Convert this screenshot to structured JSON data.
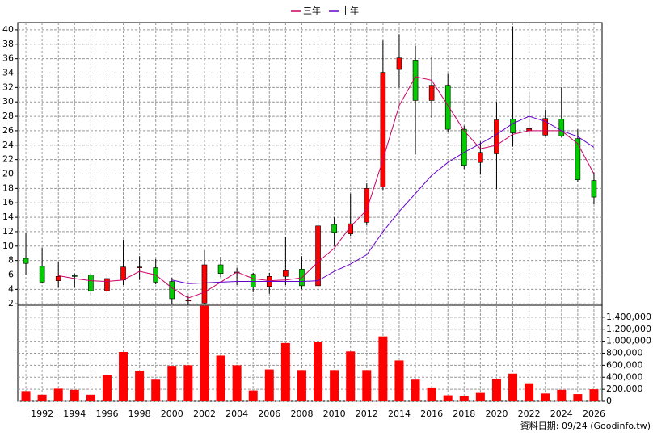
{
  "chart_data": [
    {
      "type": "candlestick",
      "categories": [
        null,
        "1992",
        null,
        "1994",
        null,
        "1996",
        null,
        "1998",
        null,
        "2000",
        null,
        "2002",
        null,
        "2004",
        null,
        "2006",
        null,
        "2008",
        null,
        "2010",
        null,
        "2012",
        null,
        "2014",
        null,
        "2016",
        null,
        "2018",
        null,
        "2020",
        null,
        "2022",
        null,
        "2024",
        null,
        "2026"
      ],
      "open": [
        8.3,
        7.2,
        5.2,
        5.9,
        6.0,
        3.8,
        5.3,
        7.0,
        7.0,
        5.1,
        2.4,
        2.1,
        7.4,
        6.4,
        6.1,
        4.4,
        5.8,
        6.8,
        4.5,
        13.0,
        11.7,
        13.3,
        18.2,
        34.5,
        35.8,
        30.2,
        32.3,
        26.2,
        21.6,
        22.8,
        27.6,
        26.0,
        25.4,
        27.6,
        24.9,
        19.1
      ],
      "high": [
        11.9,
        9.8,
        7.8,
        6.2,
        6.3,
        6.0,
        10.9,
        8.6,
        8.2,
        5.6,
        3.1,
        9.4,
        8.5,
        7.0,
        6.3,
        6.3,
        11.3,
        8.6,
        15.4,
        14.0,
        17.3,
        18.7,
        38.5,
        39.4,
        37.8,
        36.2,
        33.9,
        26.7,
        24.5,
        30.0,
        40.5,
        31.4,
        28.9,
        32.0,
        26.2,
        20.2
      ],
      "low": [
        6.0,
        4.8,
        4.2,
        4.2,
        3.2,
        3.4,
        4.6,
        5.3,
        4.7,
        1.9,
        1.8,
        2.0,
        5.7,
        4.6,
        3.6,
        3.4,
        4.6,
        4.0,
        3.9,
        10.0,
        11.4,
        12.9,
        17.8,
        32.0,
        22.7,
        27.8,
        25.8,
        20.7,
        19.9,
        17.9,
        23.8,
        25.3,
        25.2,
        25.1,
        18.9,
        15.8
      ],
      "close": [
        7.6,
        5.0,
        5.8,
        5.8,
        3.8,
        5.5,
        7.1,
        7.1,
        5.0,
        2.7,
        2.5,
        7.4,
        6.2,
        6.3,
        4.3,
        5.8,
        6.6,
        4.5,
        12.8,
        11.9,
        13.1,
        18.0,
        34.1,
        36.1,
        30.2,
        32.3,
        26.2,
        21.2,
        23.0,
        27.5,
        25.7,
        26.3,
        27.7,
        25.3,
        19.2,
        16.8
      ],
      "up_color": "#ff0000",
      "down_color": "#00cc00",
      "series": [
        {
          "name": "三年",
          "color": "#cc0066",
          "values": [
            null,
            null,
            5.9,
            5.5,
            5.2,
            5.1,
            5.3,
            6.5,
            6.0,
            4.2,
            2.8,
            3.6,
            5.0,
            6.4,
            5.5,
            5.2,
            5.3,
            5.6,
            7.8,
            9.7,
            12.7,
            15.0,
            22.0,
            29.5,
            33.5,
            33.0,
            29.5,
            26.0,
            23.5,
            24.0,
            25.5,
            26.0,
            26.0,
            26.0,
            24.2,
            20.0
          ]
        },
        {
          "name": "十年",
          "color": "#6600cc",
          "values": [
            null,
            null,
            null,
            null,
            null,
            null,
            null,
            null,
            null,
            5.3,
            4.8,
            4.9,
            5.0,
            5.1,
            5.1,
            5.1,
            5.1,
            5.1,
            5.2,
            6.5,
            7.5,
            8.8,
            12.0,
            14.8,
            17.3,
            19.8,
            21.6,
            23.0,
            24.2,
            25.5,
            27.0,
            28.0,
            27.3,
            26.0,
            25.2,
            23.7
          ]
        }
      ],
      "ylim": [
        1.8,
        41
      ],
      "yticks": [
        2,
        4,
        6,
        8,
        10,
        12,
        14,
        16,
        18,
        20,
        22,
        24,
        26,
        28,
        30,
        32,
        34,
        36,
        38,
        40
      ],
      "grid": true
    },
    {
      "type": "bar",
      "values": [
        170000,
        110000,
        210000,
        190000,
        110000,
        440000,
        820000,
        510000,
        360000,
        590000,
        600000,
        1590000,
        760000,
        600000,
        180000,
        530000,
        970000,
        520000,
        990000,
        520000,
        830000,
        520000,
        1080000,
        680000,
        360000,
        230000,
        100000,
        90000,
        140000,
        370000,
        460000,
        300000,
        130000,
        190000,
        120000,
        200000
      ],
      "color": "#ff0000",
      "ylim": [
        0,
        1600000
      ],
      "yticks": [
        0,
        {
          "value": 200000,
          "label": "200,000"
        },
        {
          "value": 400000,
          "label": "400,000"
        },
        {
          "value": 600000,
          "label": "600,000"
        },
        {
          "value": 800000,
          "label": "800,000"
        },
        {
          "value": 1000000,
          "label": "1,000,000"
        },
        {
          "value": 1200000,
          "label": "1,200,000"
        },
        {
          "value": 1400000,
          "label": "1,400,000"
        }
      ],
      "grid": true
    }
  ],
  "source": "資料日期: 09/24 (Goodinfo.tw)"
}
